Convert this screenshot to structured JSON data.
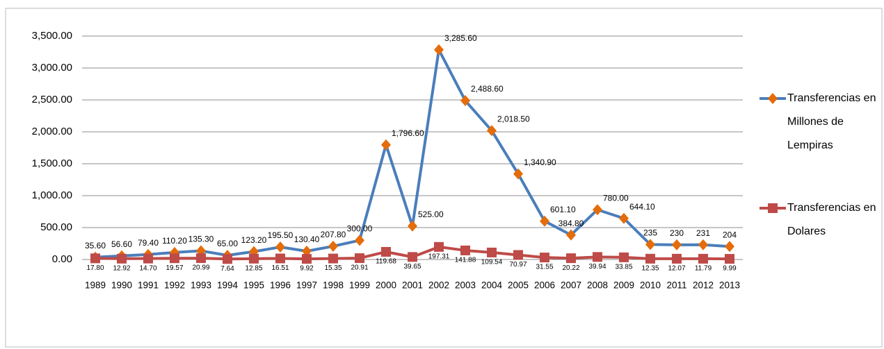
{
  "chart_data": {
    "type": "line",
    "categories": [
      "1989",
      "1990",
      "1991",
      "1992",
      "1993",
      "1994",
      "1995",
      "1996",
      "1997",
      "1998",
      "1999",
      "2000",
      "2001",
      "2002",
      "2003",
      "2004",
      "2005",
      "2006",
      "2007",
      "2008",
      "2009",
      "2010",
      "2011",
      "2012",
      "2013"
    ],
    "series": [
      {
        "name": "Transferencias en Millones de Lempiras",
        "color": "#4a7ebb",
        "marker": "diamond",
        "marker_color": "#e46c0a",
        "values": [
          35.6,
          56.6,
          79.4,
          110.2,
          135.3,
          65.0,
          123.2,
          195.5,
          130.4,
          207.8,
          300.0,
          1796.6,
          525.0,
          3285.6,
          2488.6,
          2018.5,
          1340.9,
          601.1,
          384.8,
          780.0,
          644.1,
          235,
          230,
          231,
          204
        ],
        "value_labels": [
          "35.60",
          "56.60",
          "79.40",
          "110.20",
          "135.30",
          "65.00",
          "123.20",
          "195.50",
          "130.40",
          "207.80",
          "300.00",
          "1,796.60",
          "525.00",
          "3,285.60",
          "2,488.60",
          "2,018.50",
          "1,340.90",
          "601.10",
          "384.80",
          "780.00",
          "644.10",
          "235",
          "230",
          "231",
          "204"
        ]
      },
      {
        "name": "Transferencias en Dolares",
        "color": "#be4b48",
        "marker": "square",
        "marker_color": "#be4b48",
        "values": [
          17.8,
          12.92,
          14.7,
          19.57,
          20.99,
          7.64,
          12.85,
          16.51,
          9.92,
          15.35,
          20.91,
          119.68,
          39.65,
          197.31,
          141.88,
          109.54,
          70.97,
          31.55,
          20.22,
          39.94,
          33.85,
          12.35,
          12.07,
          11.79,
          9.99
        ],
        "value_labels": [
          "17.80",
          "12.92",
          "14.70",
          "19.57",
          "20.99",
          "7.64",
          "12.85",
          "16.51",
          "9.92",
          "15.35",
          "20.91",
          "119.68",
          "39.65",
          "197.31",
          "141.88",
          "109.54",
          "70.97",
          "31.55",
          "20.22",
          "39.94",
          "33.85",
          "12.35",
          "12.07",
          "11.79",
          "9.99"
        ]
      }
    ],
    "ylim": [
      0,
      3500
    ],
    "yticks": [
      {
        "value": 0,
        "label": "0.00"
      },
      {
        "value": 500,
        "label": "500.00"
      },
      {
        "value": 1000,
        "label": "1,000.00"
      },
      {
        "value": 1500,
        "label": "1,500.00"
      },
      {
        "value": 2000,
        "label": "2,000.00"
      },
      {
        "value": 2500,
        "label": "2,500.00"
      },
      {
        "value": 3000,
        "label": "3,000.00"
      },
      {
        "value": 3500,
        "label": "3,500.00"
      }
    ],
    "grid": true,
    "legend": "right"
  }
}
